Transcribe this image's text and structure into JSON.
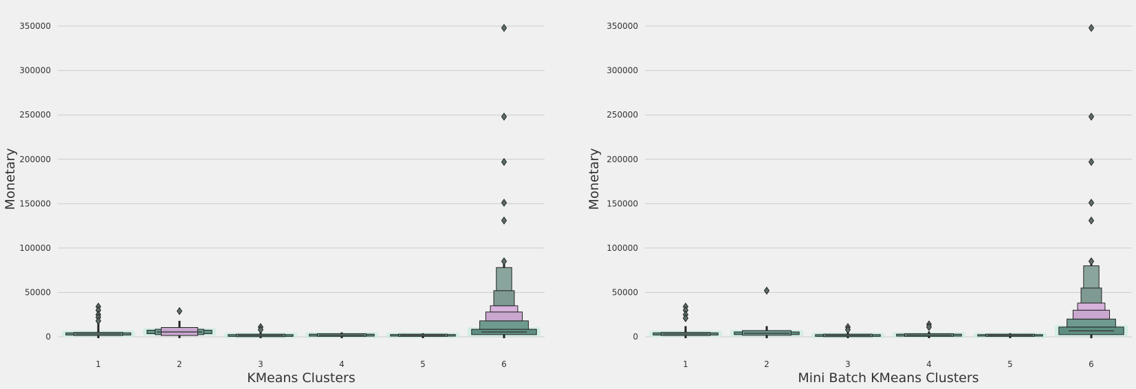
{
  "chart_data": [
    {
      "type": "boxenplot",
      "xlabel": "KMeans Clusters",
      "ylabel": "Monetary",
      "categories": [
        "1",
        "2",
        "3",
        "4",
        "5",
        "6"
      ],
      "yticks": [
        "0",
        "50000",
        "100000",
        "150000",
        "200000",
        "250000",
        "300000",
        "350000"
      ],
      "ylim": [
        -1500,
        357000
      ],
      "grid": "horizontal",
      "series": [
        {
          "category": "1",
          "levels": [
            [
              2000,
              4500
            ],
            [
              1500,
              5000
            ]
          ],
          "whisker_high": 28000,
          "outliers": [
            34000,
            30000,
            25000,
            22000,
            18000
          ]
        },
        {
          "category": "2",
          "levels": [
            [
              3500,
              7500
            ],
            [
              2500,
              8500
            ],
            [
              1500,
              10500
            ]
          ],
          "whisker_high": 18000,
          "outliers": [
            29000
          ]
        },
        {
          "category": "3",
          "levels": [
            [
              500,
              2500
            ],
            [
              200,
              3000
            ]
          ],
          "whisker_high": 5000,
          "outliers": [
            11000,
            8000
          ]
        },
        {
          "category": "4",
          "levels": [
            [
              800,
              3000
            ],
            [
              500,
              3500
            ]
          ],
          "whisker_high": 5000,
          "outliers": []
        },
        {
          "category": "5",
          "levels": [
            [
              800,
              2600
            ],
            [
              500,
              3000
            ]
          ],
          "whisker_high": 4000,
          "outliers": []
        },
        {
          "category": "6",
          "levels": [
            [
              2500,
              8500
            ],
            [
              8500,
              18000
            ],
            [
              18000,
              28000
            ],
            [
              28000,
              35000
            ],
            [
              35000,
              52000
            ],
            [
              52000,
              78000
            ]
          ],
          "whisker_high": 82000,
          "outliers": [
            348000,
            248000,
            197000,
            151000,
            131000,
            85000
          ]
        }
      ]
    },
    {
      "type": "boxenplot",
      "xlabel": "Mini Batch KMeans Clusters",
      "ylabel": "Monetary",
      "categories": [
        "1",
        "2",
        "3",
        "4",
        "5",
        "6"
      ],
      "yticks": [
        "0",
        "50000",
        "100000",
        "150000",
        "200000",
        "250000",
        "300000",
        "350000"
      ],
      "ylim": [
        -1500,
        357000
      ],
      "grid": "horizontal",
      "series": [
        {
          "category": "1",
          "levels": [
            [
              2000,
              4500
            ],
            [
              1500,
              5000
            ]
          ],
          "whisker_high": 12000,
          "outliers": [
            34000,
            30000,
            25000,
            21000
          ]
        },
        {
          "category": "2",
          "levels": [
            [
              2500,
              5500
            ],
            [
              1800,
              7000
            ]
          ],
          "whisker_high": 12000,
          "outliers": [
            52000
          ]
        },
        {
          "category": "3",
          "levels": [
            [
              500,
              2500
            ],
            [
              200,
              3000
            ]
          ],
          "whisker_high": 5000,
          "outliers": [
            11000,
            8000
          ]
        },
        {
          "category": "4",
          "levels": [
            [
              800,
              3000
            ],
            [
              500,
              3500
            ]
          ],
          "whisker_high": 6000,
          "outliers": [
            14000,
            11000
          ]
        },
        {
          "category": "5",
          "levels": [
            [
              800,
              2500
            ],
            [
              500,
              3000
            ]
          ],
          "whisker_high": 4000,
          "outliers": []
        },
        {
          "category": "6",
          "levels": [
            [
              2500,
              11000
            ],
            [
              11000,
              20000
            ],
            [
              20000,
              30000
            ],
            [
              30000,
              38000
            ],
            [
              38000,
              55000
            ],
            [
              55000,
              80000
            ]
          ],
          "whisker_high": 82000,
          "outliers": [
            348000,
            248000,
            197000,
            151000,
            131000,
            85000
          ]
        }
      ]
    }
  ]
}
